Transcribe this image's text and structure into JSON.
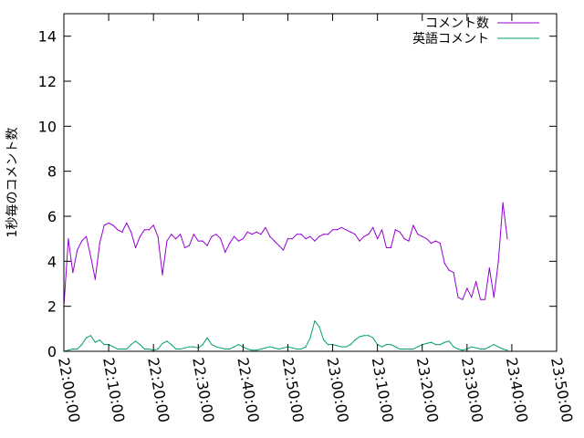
{
  "chart_data": {
    "type": "line",
    "title": "",
    "xlabel": "",
    "ylabel": "1秒毎のコメント数",
    "ylim": [
      0,
      15
    ],
    "y_ticks": [
      0,
      2,
      4,
      6,
      8,
      10,
      12,
      14
    ],
    "x_ticks": [
      "22:00:00",
      "22:10:00",
      "22:20:00",
      "22:30:00",
      "22:40:00",
      "22:50:00",
      "23:00:00",
      "23:10:00",
      "23:20:00",
      "23:30:00",
      "23:40:00",
      "23:50:00"
    ],
    "xlim": [
      "22:00:00",
      "23:50:00"
    ],
    "grid": false,
    "legend_position": "top-right",
    "series": [
      {
        "name": "コメント数",
        "color": "#9400d3",
        "points": [
          [
            "22:00:00",
            2.0
          ],
          [
            "22:01:00",
            5.0
          ],
          [
            "22:02:00",
            3.5
          ],
          [
            "22:03:00",
            4.5
          ],
          [
            "22:04:00",
            4.9
          ],
          [
            "22:05:00",
            5.1
          ],
          [
            "22:06:00",
            4.2
          ],
          [
            "22:07:00",
            3.2
          ],
          [
            "22:08:00",
            4.8
          ],
          [
            "22:09:00",
            5.6
          ],
          [
            "22:10:00",
            5.7
          ],
          [
            "22:11:00",
            5.6
          ],
          [
            "22:12:00",
            5.4
          ],
          [
            "22:13:00",
            5.3
          ],
          [
            "22:14:00",
            5.7
          ],
          [
            "22:15:00",
            5.3
          ],
          [
            "22:16:00",
            4.6
          ],
          [
            "22:17:00",
            5.1
          ],
          [
            "22:18:00",
            5.4
          ],
          [
            "22:19:00",
            5.4
          ],
          [
            "22:20:00",
            5.6
          ],
          [
            "22:21:00",
            5.1
          ],
          [
            "22:22:00",
            3.4
          ],
          [
            "22:23:00",
            4.9
          ],
          [
            "22:24:00",
            5.2
          ],
          [
            "22:25:00",
            5.0
          ],
          [
            "22:26:00",
            5.2
          ],
          [
            "22:27:00",
            4.6
          ],
          [
            "22:28:00",
            4.7
          ],
          [
            "22:29:00",
            5.2
          ],
          [
            "22:30:00",
            4.9
          ],
          [
            "22:31:00",
            4.9
          ],
          [
            "22:32:00",
            4.7
          ],
          [
            "22:33:00",
            5.1
          ],
          [
            "22:34:00",
            5.2
          ],
          [
            "22:35:00",
            5.0
          ],
          [
            "22:36:00",
            4.4
          ],
          [
            "22:37:00",
            4.8
          ],
          [
            "22:38:00",
            5.1
          ],
          [
            "22:39:00",
            4.9
          ],
          [
            "22:40:00",
            5.0
          ],
          [
            "22:41:00",
            5.3
          ],
          [
            "22:42:00",
            5.2
          ],
          [
            "22:43:00",
            5.3
          ],
          [
            "22:44:00",
            5.2
          ],
          [
            "22:45:00",
            5.5
          ],
          [
            "22:46:00",
            5.1
          ],
          [
            "22:47:00",
            4.9
          ],
          [
            "22:48:00",
            4.7
          ],
          [
            "22:49:00",
            4.5
          ],
          [
            "22:50:00",
            5.0
          ],
          [
            "22:51:00",
            5.0
          ],
          [
            "22:52:00",
            5.2
          ],
          [
            "22:53:00",
            5.2
          ],
          [
            "22:54:00",
            5.0
          ],
          [
            "22:55:00",
            5.1
          ],
          [
            "22:56:00",
            4.9
          ],
          [
            "22:57:00",
            5.1
          ],
          [
            "22:58:00",
            5.2
          ],
          [
            "22:59:00",
            5.2
          ],
          [
            "23:00:00",
            5.4
          ],
          [
            "23:01:00",
            5.4
          ],
          [
            "23:02:00",
            5.5
          ],
          [
            "23:03:00",
            5.4
          ],
          [
            "23:04:00",
            5.3
          ],
          [
            "23:05:00",
            5.2
          ],
          [
            "23:06:00",
            4.9
          ],
          [
            "23:07:00",
            5.1
          ],
          [
            "23:08:00",
            5.2
          ],
          [
            "23:09:00",
            5.5
          ],
          [
            "23:10:00",
            5.0
          ],
          [
            "23:11:00",
            5.4
          ],
          [
            "23:12:00",
            4.6
          ],
          [
            "23:13:00",
            4.6
          ],
          [
            "23:14:00",
            5.4
          ],
          [
            "23:15:00",
            5.3
          ],
          [
            "23:16:00",
            5.0
          ],
          [
            "23:17:00",
            4.9
          ],
          [
            "23:18:00",
            5.6
          ],
          [
            "23:19:00",
            5.2
          ],
          [
            "23:20:00",
            5.1
          ],
          [
            "23:21:00",
            5.0
          ],
          [
            "23:22:00",
            4.8
          ],
          [
            "23:23:00",
            4.9
          ],
          [
            "23:24:00",
            4.8
          ],
          [
            "23:25:00",
            3.9
          ],
          [
            "23:26:00",
            3.6
          ],
          [
            "23:27:00",
            3.5
          ],
          [
            "23:28:00",
            2.4
          ],
          [
            "23:29:00",
            2.3
          ],
          [
            "23:30:00",
            2.8
          ],
          [
            "23:31:00",
            2.4
          ],
          [
            "23:32:00",
            3.1
          ],
          [
            "23:33:00",
            2.3
          ],
          [
            "23:34:00",
            2.3
          ],
          [
            "23:35:00",
            3.7
          ],
          [
            "23:36:00",
            2.4
          ],
          [
            "23:37:00",
            4.0
          ],
          [
            "23:38:00",
            6.6
          ],
          [
            "23:39:00",
            5.0
          ]
        ]
      },
      {
        "name": "英語コメント",
        "color": "#009e73",
        "points": [
          [
            "22:00:00",
            0.0
          ],
          [
            "22:01:00",
            0.05
          ],
          [
            "22:02:00",
            0.1
          ],
          [
            "22:03:00",
            0.1
          ],
          [
            "22:04:00",
            0.3
          ],
          [
            "22:05:00",
            0.6
          ],
          [
            "22:06:00",
            0.7
          ],
          [
            "22:07:00",
            0.4
          ],
          [
            "22:08:00",
            0.5
          ],
          [
            "22:09:00",
            0.3
          ],
          [
            "22:10:00",
            0.3
          ],
          [
            "22:11:00",
            0.2
          ],
          [
            "22:12:00",
            0.1
          ],
          [
            "22:13:00",
            0.1
          ],
          [
            "22:14:00",
            0.1
          ],
          [
            "22:15:00",
            0.3
          ],
          [
            "22:16:00",
            0.45
          ],
          [
            "22:17:00",
            0.3
          ],
          [
            "22:18:00",
            0.1
          ],
          [
            "22:19:00",
            0.1
          ],
          [
            "22:20:00",
            0.05
          ],
          [
            "22:21:00",
            0.1
          ],
          [
            "22:22:00",
            0.35
          ],
          [
            "22:23:00",
            0.45
          ],
          [
            "22:24:00",
            0.3
          ],
          [
            "22:25:00",
            0.1
          ],
          [
            "22:26:00",
            0.1
          ],
          [
            "22:27:00",
            0.15
          ],
          [
            "22:28:00",
            0.2
          ],
          [
            "22:29:00",
            0.2
          ],
          [
            "22:30:00",
            0.15
          ],
          [
            "22:31:00",
            0.3
          ],
          [
            "22:32:00",
            0.6
          ],
          [
            "22:33:00",
            0.3
          ],
          [
            "22:34:00",
            0.2
          ],
          [
            "22:35:00",
            0.15
          ],
          [
            "22:36:00",
            0.1
          ],
          [
            "22:37:00",
            0.1
          ],
          [
            "22:38:00",
            0.2
          ],
          [
            "22:39:00",
            0.3
          ],
          [
            "22:40:00",
            0.2
          ],
          [
            "22:41:00",
            0.1
          ],
          [
            "22:42:00",
            0.05
          ],
          [
            "22:43:00",
            0.05
          ],
          [
            "22:44:00",
            0.1
          ],
          [
            "22:45:00",
            0.15
          ],
          [
            "22:46:00",
            0.2
          ],
          [
            "22:47:00",
            0.15
          ],
          [
            "22:48:00",
            0.1
          ],
          [
            "22:49:00",
            0.15
          ],
          [
            "22:50:00",
            0.2
          ],
          [
            "22:51:00",
            0.15
          ],
          [
            "22:52:00",
            0.1
          ],
          [
            "22:53:00",
            0.1
          ],
          [
            "22:54:00",
            0.2
          ],
          [
            "22:55:00",
            0.6
          ],
          [
            "22:56:00",
            1.35
          ],
          [
            "22:57:00",
            1.1
          ],
          [
            "22:58:00",
            0.5
          ],
          [
            "22:59:00",
            0.3
          ],
          [
            "23:00:00",
            0.3
          ],
          [
            "23:01:00",
            0.25
          ],
          [
            "23:02:00",
            0.2
          ],
          [
            "23:03:00",
            0.2
          ],
          [
            "23:04:00",
            0.3
          ],
          [
            "23:05:00",
            0.5
          ],
          [
            "23:06:00",
            0.65
          ],
          [
            "23:07:00",
            0.7
          ],
          [
            "23:08:00",
            0.7
          ],
          [
            "23:09:00",
            0.6
          ],
          [
            "23:10:00",
            0.3
          ],
          [
            "23:11:00",
            0.2
          ],
          [
            "23:12:00",
            0.3
          ],
          [
            "23:13:00",
            0.3
          ],
          [
            "23:14:00",
            0.2
          ],
          [
            "23:15:00",
            0.1
          ],
          [
            "23:16:00",
            0.1
          ],
          [
            "23:17:00",
            0.1
          ],
          [
            "23:18:00",
            0.1
          ],
          [
            "23:19:00",
            0.2
          ],
          [
            "23:20:00",
            0.3
          ],
          [
            "23:21:00",
            0.35
          ],
          [
            "23:22:00",
            0.4
          ],
          [
            "23:23:00",
            0.3
          ],
          [
            "23:24:00",
            0.3
          ],
          [
            "23:25:00",
            0.4
          ],
          [
            "23:26:00",
            0.45
          ],
          [
            "23:27:00",
            0.2
          ],
          [
            "23:28:00",
            0.1
          ],
          [
            "23:29:00",
            0.05
          ],
          [
            "23:30:00",
            0.1
          ],
          [
            "23:31:00",
            0.2
          ],
          [
            "23:32:00",
            0.15
          ],
          [
            "23:33:00",
            0.1
          ],
          [
            "23:34:00",
            0.1
          ],
          [
            "23:35:00",
            0.2
          ],
          [
            "23:36:00",
            0.3
          ],
          [
            "23:37:00",
            0.2
          ],
          [
            "23:38:00",
            0.1
          ],
          [
            "23:39:00",
            0.05
          ]
        ]
      }
    ]
  }
}
